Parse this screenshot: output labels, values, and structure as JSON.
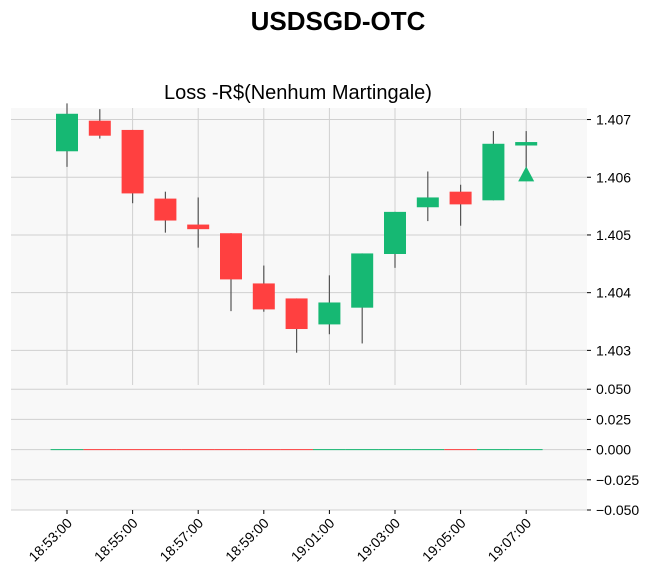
{
  "chart_data": {
    "type": "candlestick",
    "title": "USDSGD-OTC",
    "subtitle": "Loss -R$(Nenhum Martingale)",
    "colors": {
      "up": "#16b873",
      "down": "#ff4040",
      "wick": "#555555",
      "panel_bg": "#f8f8f8",
      "grid": "#d0d0d0",
      "marker": "#16b873"
    },
    "x_ticks": [
      "18:53:00",
      "18:55:00",
      "18:57:00",
      "18:59:00",
      "19:01:00",
      "19:03:00",
      "19:05:00",
      "19:07:00"
    ],
    "price_axis": {
      "position": "right",
      "ylim": [
        1.4024,
        1.4072
      ],
      "ticks": [
        1.403,
        1.404,
        1.405,
        1.406,
        1.407
      ],
      "tick_labels": [
        "1.403",
        "1.404",
        "1.405",
        "1.406",
        "1.407"
      ]
    },
    "volume_axis": {
      "position": "right",
      "ylim": [
        -0.05,
        0.0535
      ],
      "ticks": [
        -0.05,
        -0.025,
        0.0,
        0.025,
        0.05
      ],
      "tick_labels": [
        "−0.050",
        "−0.025",
        "0.000",
        "0.025",
        "0.050"
      ]
    },
    "candles": [
      {
        "time": "18:53:00",
        "open": 1.40645,
        "high": 1.40728,
        "low": 1.40618,
        "close": 1.4071
      },
      {
        "time": "18:54:00",
        "open": 1.40698,
        "high": 1.40718,
        "low": 1.40667,
        "close": 1.40672
      },
      {
        "time": "18:55:00",
        "open": 1.40682,
        "high": 1.40682,
        "low": 1.40555,
        "close": 1.40572
      },
      {
        "time": "18:56:00",
        "open": 1.40563,
        "high": 1.40575,
        "low": 1.40504,
        "close": 1.40525
      },
      {
        "time": "18:57:00",
        "open": 1.40518,
        "high": 1.40565,
        "low": 1.40478,
        "close": 1.4051
      },
      {
        "time": "18:58:00",
        "open": 1.40503,
        "high": 1.40503,
        "low": 1.40368,
        "close": 1.40423
      },
      {
        "time": "18:59:00",
        "open": 1.40416,
        "high": 1.40447,
        "low": 1.40367,
        "close": 1.40371
      },
      {
        "time": "19:00:00",
        "open": 1.4039,
        "high": 1.4039,
        "low": 1.40296,
        "close": 1.40337
      },
      {
        "time": "19:01:00",
        "open": 1.40345,
        "high": 1.4043,
        "low": 1.40328,
        "close": 1.40383
      },
      {
        "time": "19:02:00",
        "open": 1.40374,
        "high": 1.40468,
        "low": 1.40312,
        "close": 1.40468
      },
      {
        "time": "19:03:00",
        "open": 1.40467,
        "high": 1.4054,
        "low": 1.40443,
        "close": 1.4054
      },
      {
        "time": "19:04:00",
        "open": 1.40548,
        "high": 1.4061,
        "low": 1.40524,
        "close": 1.40565
      },
      {
        "time": "19:05:00",
        "open": 1.40575,
        "high": 1.40587,
        "low": 1.40516,
        "close": 1.40553
      },
      {
        "time": "19:06:00",
        "open": 1.4056,
        "high": 1.4068,
        "low": 1.4056,
        "close": 1.40658
      },
      {
        "time": "19:07:00",
        "open": 1.40655,
        "high": 1.4068,
        "low": 1.40604,
        "close": 1.40661
      }
    ],
    "volumes": [
      0,
      0,
      0,
      0,
      0,
      0,
      0,
      0,
      0,
      0,
      0,
      0,
      0,
      0,
      0
    ],
    "marker": {
      "time": "19:07:00",
      "price": 1.40605,
      "shape": "triangle-up"
    },
    "grid": true
  }
}
